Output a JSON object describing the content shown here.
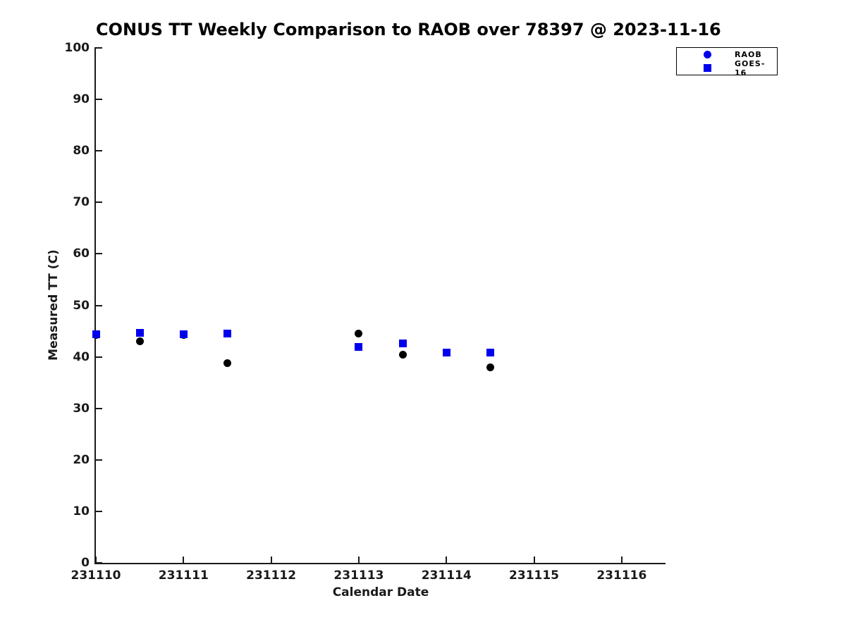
{
  "chart_data": {
    "type": "scatter",
    "title": "CONUS TT Weekly Comparison to RAOB over 78397 @ 2023-11-16",
    "xlabel": "Calendar Date",
    "ylabel": "Measured TT (C)",
    "xlim": [
      231110,
      231116.5
    ],
    "ylim": [
      0,
      100
    ],
    "xticks": [
      231110,
      231111,
      231112,
      231113,
      231114,
      231115,
      231116
    ],
    "yticks": [
      0,
      10,
      20,
      30,
      40,
      50,
      60,
      70,
      80,
      90,
      100
    ],
    "grid": false,
    "legend_position": "top-right-outside",
    "legend": [
      {
        "label": "RAOB",
        "marker": "circle",
        "color": "#0000EE"
      },
      {
        "label": "GOES-16",
        "marker": "square",
        "color": "#0000EE"
      }
    ],
    "series": [
      {
        "name": "RAOB",
        "marker": "circle",
        "color": "#000000",
        "points": [
          [
            231110.0,
            44.2
          ],
          [
            231110.5,
            43.0
          ],
          [
            231111.0,
            44.2
          ],
          [
            231111.5,
            38.8
          ],
          [
            231113.0,
            44.5
          ],
          [
            231113.5,
            40.4
          ],
          [
            231114.0,
            40.8
          ],
          [
            231114.5,
            37.9
          ]
        ]
      },
      {
        "name": "GOES-16",
        "marker": "square",
        "color": "#0000EE",
        "points": [
          [
            231110.0,
            44.4
          ],
          [
            231110.5,
            44.6
          ],
          [
            231111.0,
            44.4
          ],
          [
            231111.5,
            44.5
          ],
          [
            231113.0,
            41.9
          ],
          [
            231113.5,
            42.6
          ],
          [
            231114.0,
            40.9
          ],
          [
            231114.5,
            40.9
          ]
        ]
      }
    ]
  },
  "colors": {
    "axis": "#1a1a1a",
    "blue": "#0000EE",
    "black": "#000000",
    "background": "#ffffff"
  }
}
